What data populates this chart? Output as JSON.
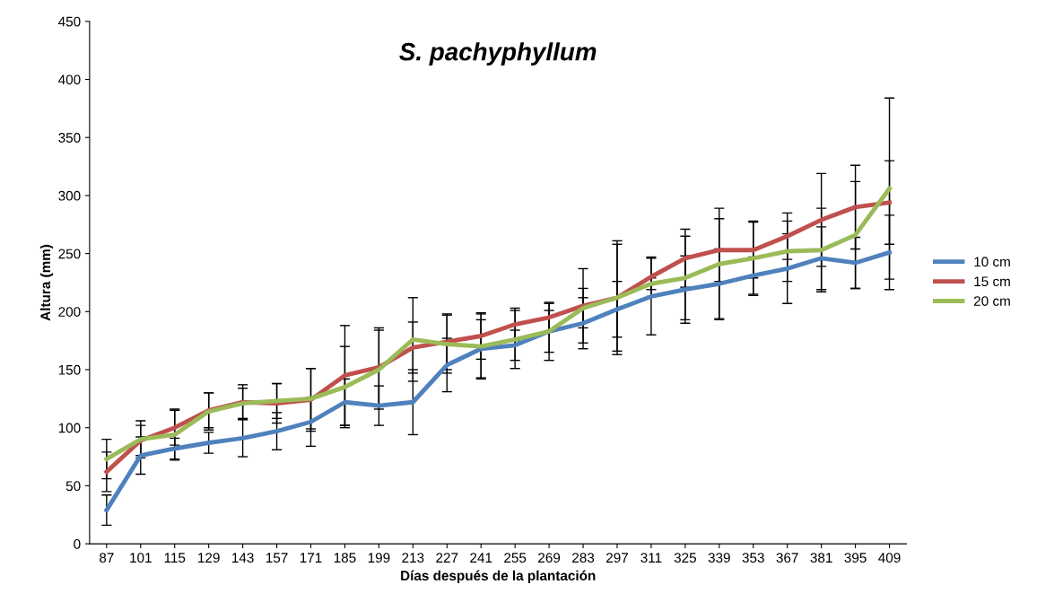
{
  "chart_data": {
    "type": "line",
    "title": "S. pachyphyllum",
    "xlabel": "Días después de la plantación",
    "ylabel": "Altura (mm)",
    "categories": [
      "87",
      "101",
      "115",
      "129",
      "143",
      "157",
      "171",
      "185",
      "199",
      "213",
      "227",
      "241",
      "255",
      "269",
      "283",
      "297",
      "311",
      "325",
      "339",
      "353",
      "367",
      "381",
      "395",
      "409"
    ],
    "series": [
      {
        "name": "10 cm",
        "color": "#4f81bd",
        "values": [
          29,
          76,
          82,
          87,
          91,
          97,
          105,
          122,
          119,
          122,
          154,
          168,
          171,
          183,
          190,
          202,
          213,
          219,
          224,
          231,
          237,
          246,
          242,
          251
        ],
        "errors": [
          13,
          16,
          9,
          9,
          16,
          16,
          21,
          20,
          17,
          28,
          23,
          25,
          13,
          18,
          22,
          24,
          33,
          29,
          30,
          16,
          30,
          27,
          22,
          32
        ]
      },
      {
        "name": "15 cm",
        "color": "#c0504d",
        "values": [
          62,
          89,
          100,
          115,
          122,
          121,
          124,
          145,
          152,
          169,
          174,
          179,
          189,
          195,
          205,
          212,
          230,
          246,
          253,
          253,
          265,
          279,
          290,
          294
        ],
        "errors": [
          17,
          13,
          15,
          15,
          15,
          17,
          27,
          43,
          34,
          22,
          24,
          20,
          14,
          12,
          32,
          46,
          17,
          25,
          27,
          24,
          20,
          40,
          36,
          36
        ]
      },
      {
        "name": "20 cm",
        "color": "#9bbb59",
        "values": [
          73,
          90,
          94,
          114,
          121,
          123,
          125,
          135,
          150,
          176,
          172,
          170,
          176,
          183,
          203,
          212,
          224,
          229,
          241,
          246,
          252,
          253,
          266,
          306
        ],
        "errors": [
          17,
          16,
          22,
          16,
          13,
          15,
          26,
          35,
          34,
          36,
          25,
          28,
          25,
          25,
          17,
          49,
          5,
          36,
          48,
          32,
          26,
          36,
          46,
          78
        ]
      }
    ],
    "ylim": [
      0,
      450
    ],
    "yticks": [
      0,
      50,
      100,
      150,
      200,
      250,
      300,
      350,
      400,
      450
    ],
    "grid": false,
    "legend": "right",
    "marker": "none",
    "line_style": "solid"
  }
}
